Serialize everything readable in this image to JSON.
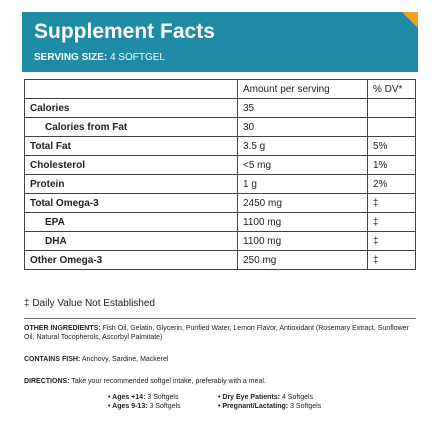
{
  "header": {
    "title": "Supplement Facts",
    "serving_label": "SERVING SIZE:",
    "serving_value": "4 SOFTGEL"
  },
  "table": {
    "header": {
      "amount": "Amount per serving",
      "dv": "% DV*"
    },
    "rows": [
      {
        "label": "Calories",
        "amount": "35"
      },
      {
        "label": "Calories from Fat",
        "amount": "30",
        "indent": true
      },
      {
        "label": "Total Fat",
        "amount": "3.5 g",
        "dv": "5%"
      },
      {
        "label": "Cholesterol",
        "amount": "<5 mg",
        "dv": "1%"
      },
      {
        "label": "Protein",
        "amount": "1 g",
        "dv": "2%"
      },
      {
        "label": "Total Omega-3",
        "amount": "2450 mg",
        "dv": "‡"
      },
      {
        "label": "EPA",
        "amount": "1100 mg",
        "dv": "‡",
        "indent": true
      },
      {
        "label": "DHA",
        "amount": "1100 mg",
        "dv": "‡",
        "indent": true
      },
      {
        "label": "Other Omega-3",
        "amount": "250 mg",
        "dv": "‡"
      }
    ]
  },
  "footnote": "‡ Daily Value Not Established",
  "other_ingredients": {
    "label": "OTHER INGREDIENTS:",
    "text": "Fish Oil, Gelatin, Glycerin, Purified Water, Lemon Flavor, Antioxidant (Rosemary Extract, Sunflower Oil, Natural Tocopherols, Ascorbyl Palmitate)"
  },
  "contains_fish": {
    "label": "CONTAINS FISH:",
    "text": "Anchovy, Sardine, Mackerel"
  },
  "directions": {
    "label": "DIRECTIONS:",
    "text": "Take your recommended softgel intake, preferably with a meal."
  },
  "bullets": [
    {
      "label": "• Ages +14:",
      "text": "3 Softgels"
    },
    {
      "label": "• Ages 9-13:",
      "text": "3 Softgels"
    },
    {
      "label": "• Dry Eye Patients:",
      "text": "4 Softgels"
    },
    {
      "label": "• Pregnant/Lactating:",
      "text": "3 Softgels"
    }
  ]
}
